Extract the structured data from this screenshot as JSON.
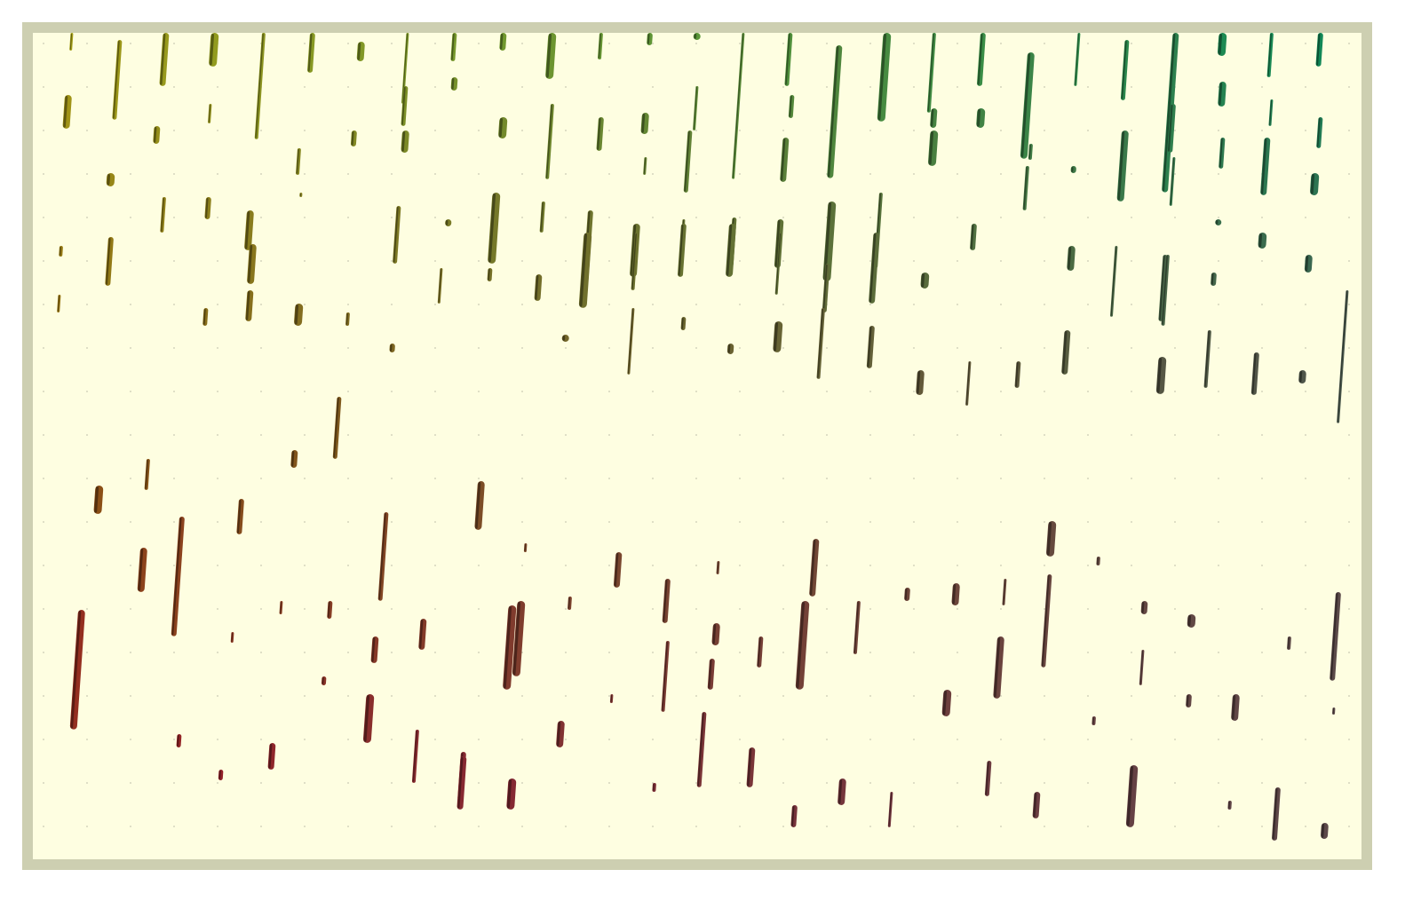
{
  "colors": {
    "background": "#ffffff",
    "frame": "#cdcfb1",
    "canvas": "#fefee1",
    "grid_dot": "#c9c9b4",
    "top_left_mark": "#a9a116",
    "top_right_mark": "#0a8a5a",
    "mid_left_mark": "#8a5a10",
    "bottom_left_mark": "#a10a2a",
    "bottom_right_mark": "#5a4a4a"
  },
  "marks": [
    [
      44,
      0,
      20
    ],
    [
      98,
      8,
      90
    ],
    [
      150,
      0,
      60
    ],
    [
      205,
      0,
      38
    ],
    [
      260,
      0,
      120
    ],
    [
      315,
      0,
      45
    ],
    [
      370,
      10,
      22
    ],
    [
      422,
      0,
      80
    ],
    [
      475,
      0,
      32
    ],
    [
      530,
      0,
      20
    ],
    [
      585,
      0,
      52
    ],
    [
      640,
      0,
      30
    ],
    [
      695,
      0,
      14
    ],
    [
      748,
      0,
      4
    ],
    [
      800,
      0,
      165
    ],
    [
      853,
      0,
      60
    ],
    [
      908,
      14,
      150
    ],
    [
      962,
      0,
      100
    ],
    [
      1015,
      0,
      90
    ],
    [
      1070,
      0,
      60
    ],
    [
      1124,
      22,
      120
    ],
    [
      1178,
      0,
      60
    ],
    [
      1232,
      8,
      68
    ],
    [
      1287,
      0,
      180
    ],
    [
      1340,
      0,
      26
    ],
    [
      1395,
      0,
      50
    ],
    [
      1450,
      0,
      38
    ],
    [
      40,
      70,
      38
    ],
    [
      200,
      80,
      22
    ],
    [
      420,
      60,
      45
    ],
    [
      475,
      50,
      15
    ],
    [
      530,
      95,
      24
    ],
    [
      585,
      80,
      85
    ],
    [
      640,
      95,
      38
    ],
    [
      690,
      90,
      24
    ],
    [
      748,
      60,
      50
    ],
    [
      855,
      70,
      26
    ],
    [
      1015,
      85,
      22
    ],
    [
      1068,
      85,
      22
    ],
    [
      1124,
      125,
      18
    ],
    [
      1284,
      80,
      55
    ],
    [
      1340,
      55,
      28
    ],
    [
      1395,
      75,
      30
    ],
    [
      1450,
      95,
      35
    ],
    [
      140,
      105,
      20
    ],
    [
      88,
      158,
      15
    ],
    [
      300,
      130,
      30
    ],
    [
      362,
      110,
      18
    ],
    [
      420,
      110,
      25
    ],
    [
      690,
      140,
      20
    ],
    [
      740,
      110,
      70
    ],
    [
      848,
      118,
      50
    ],
    [
      1015,
      110,
      40
    ],
    [
      1120,
      150,
      50
    ],
    [
      1172,
      150,
      8
    ],
    [
      1230,
      110,
      80
    ],
    [
      1285,
      140,
      55
    ],
    [
      1340,
      118,
      35
    ],
    [
      1390,
      118,
      65
    ],
    [
      1444,
      158,
      25
    ],
    [
      148,
      185,
      40
    ],
    [
      198,
      185,
      25
    ],
    [
      245,
      200,
      45
    ],
    [
      302,
      180,
      5
    ],
    [
      412,
      195,
      65
    ],
    [
      468,
      210,
      8
    ],
    [
      522,
      180,
      80
    ],
    [
      575,
      190,
      35
    ],
    [
      628,
      200,
      85
    ],
    [
      680,
      215,
      60
    ],
    [
      733,
      210,
      55
    ],
    [
      790,
      208,
      55
    ],
    [
      842,
      210,
      55
    ],
    [
      900,
      190,
      90
    ],
    [
      955,
      180,
      85
    ],
    [
      1060,
      215,
      30
    ],
    [
      1170,
      240,
      28
    ],
    [
      1220,
      240,
      80
    ],
    [
      1275,
      250,
      75
    ],
    [
      1335,
      210,
      6
    ],
    [
      1385,
      225,
      18
    ],
    [
      32,
      240,
      12
    ],
    [
      88,
      230,
      55
    ],
    [
      248,
      238,
      45
    ],
    [
      460,
      265,
      40
    ],
    [
      515,
      265,
      15
    ],
    [
      570,
      272,
      30
    ],
    [
      625,
      225,
      85
    ],
    [
      680,
      225,
      65
    ],
    [
      733,
      215,
      60
    ],
    [
      788,
      215,
      60
    ],
    [
      842,
      225,
      70
    ],
    [
      895,
      260,
      55
    ],
    [
      950,
      225,
      80
    ],
    [
      1005,
      270,
      18
    ],
    [
      1278,
      250,
      80
    ],
    [
      1330,
      270,
      15
    ],
    [
      1437,
      250,
      20
    ],
    [
      30,
      295,
      20
    ],
    [
      195,
      310,
      20
    ],
    [
      245,
      290,
      35
    ],
    [
      300,
      305,
      25
    ],
    [
      355,
      315,
      15
    ],
    [
      405,
      350,
      10
    ],
    [
      600,
      340,
      8
    ],
    [
      676,
      310,
      75
    ],
    [
      733,
      320,
      15
    ],
    [
      786,
      350,
      12
    ],
    [
      840,
      325,
      35
    ],
    [
      890,
      310,
      80
    ],
    [
      945,
      330,
      48
    ],
    [
      1000,
      380,
      28
    ],
    [
      1055,
      370,
      50
    ],
    [
      1110,
      370,
      30
    ],
    [
      1165,
      335,
      50
    ],
    [
      1272,
      365,
      42
    ],
    [
      1325,
      335,
      65
    ],
    [
      1378,
      360,
      48
    ],
    [
      1430,
      380,
      15
    ],
    [
      1480,
      290,
      150
    ],
    [
      345,
      410,
      70
    ],
    [
      295,
      470,
      20
    ],
    [
      75,
      510,
      32
    ],
    [
      130,
      480,
      35
    ],
    [
      235,
      525,
      40
    ],
    [
      505,
      505,
      55
    ],
    [
      555,
      575,
      10
    ],
    [
      398,
      540,
      100
    ],
    [
      660,
      585,
      40
    ],
    [
      1148,
      550,
      40
    ],
    [
      1200,
      590,
      10
    ],
    [
      168,
      545,
      135
    ],
    [
      125,
      580,
      50
    ],
    [
      280,
      640,
      15
    ],
    [
      335,
      640,
      20
    ],
    [
      440,
      660,
      35
    ],
    [
      550,
      640,
      85
    ],
    [
      605,
      635,
      15
    ],
    [
      715,
      615,
      50
    ],
    [
      770,
      665,
      25
    ],
    [
      772,
      595,
      15
    ],
    [
      820,
      680,
      35
    ],
    [
      882,
      570,
      65
    ],
    [
      870,
      640,
      100
    ],
    [
      930,
      640,
      60
    ],
    [
      985,
      625,
      15
    ],
    [
      1040,
      620,
      25
    ],
    [
      1095,
      615,
      30
    ],
    [
      1145,
      610,
      105
    ],
    [
      1252,
      640,
      15
    ],
    [
      1305,
      655,
      15
    ],
    [
      1415,
      680,
      15
    ],
    [
      1470,
      630,
      100
    ],
    [
      55,
      650,
      135
    ],
    [
      225,
      675,
      12
    ],
    [
      328,
      725,
      10
    ],
    [
      386,
      680,
      30
    ],
    [
      540,
      645,
      95
    ],
    [
      715,
      685,
      80
    ],
    [
      765,
      705,
      35
    ],
    [
      1090,
      680,
      70
    ],
    [
      1250,
      695,
      40
    ],
    [
      165,
      790,
      15
    ],
    [
      270,
      800,
      30
    ],
    [
      380,
      745,
      55
    ],
    [
      433,
      785,
      60
    ],
    [
      485,
      810,
      55
    ],
    [
      595,
      775,
      30
    ],
    [
      652,
      745,
      10
    ],
    [
      756,
      765,
      85
    ],
    [
      810,
      805,
      45
    ],
    [
      1030,
      740,
      30
    ],
    [
      1195,
      770,
      10
    ],
    [
      1302,
      745,
      15
    ],
    [
      1355,
      745,
      30
    ],
    [
      1465,
      760,
      8
    ],
    [
      212,
      830,
      12
    ],
    [
      485,
      815,
      60
    ],
    [
      540,
      840,
      35
    ],
    [
      700,
      845,
      10
    ],
    [
      858,
      870,
      25
    ],
    [
      912,
      840,
      30
    ],
    [
      967,
      855,
      40
    ],
    [
      1077,
      820,
      40
    ],
    [
      1131,
      855,
      30
    ],
    [
      1240,
      825,
      70
    ],
    [
      1348,
      865,
      10
    ],
    [
      1402,
      850,
      60
    ],
    [
      1455,
      890,
      18
    ]
  ]
}
